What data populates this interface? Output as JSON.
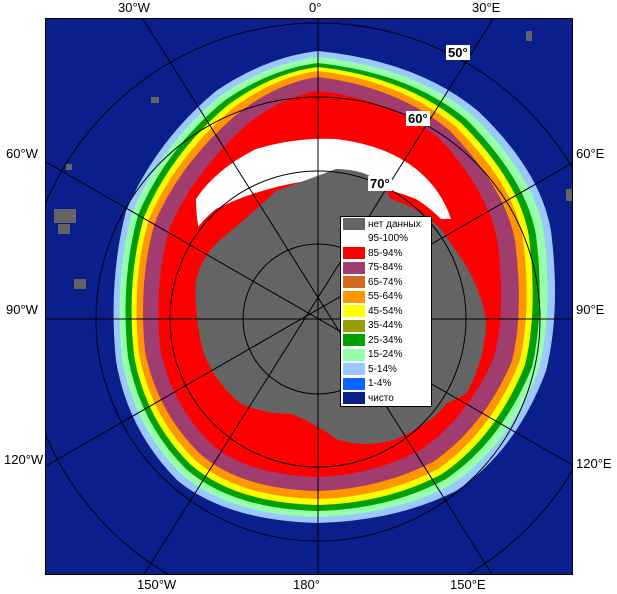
{
  "map": {
    "edge_labels": {
      "top": [
        "30°W",
        "0°",
        "30°E"
      ],
      "left": [
        "60°W",
        "90°W",
        "120°W"
      ],
      "right": [
        "60°E",
        "90°E",
        "120°E"
      ],
      "bottom": [
        "150°W",
        "180°",
        "150°E"
      ]
    },
    "latitude_labels": [
      "50°",
      "60°",
      "70°"
    ]
  },
  "legend": {
    "items": [
      {
        "label": "нет данных",
        "color": "#646464"
      },
      {
        "label": "95-100%",
        "color": "#ffffff"
      },
      {
        "label": "85-94%",
        "color": "#ff0000"
      },
      {
        "label": "75-84%",
        "color": "#a03c6e"
      },
      {
        "label": "65-74%",
        "color": "#d2691e"
      },
      {
        "label": "55-64%",
        "color": "#ff9600"
      },
      {
        "label": "45-54%",
        "color": "#ffff00"
      },
      {
        "label": "35-44%",
        "color": "#96a000"
      },
      {
        "label": "25-34%",
        "color": "#00a000"
      },
      {
        "label": "15-24%",
        "color": "#96ffaa"
      },
      {
        "label": "5-14%",
        "color": "#9bc8ff"
      },
      {
        "label": "1-4%",
        "color": "#0a64ff"
      },
      {
        "label": "чисто",
        "color": "#0a1e8c"
      }
    ]
  }
}
